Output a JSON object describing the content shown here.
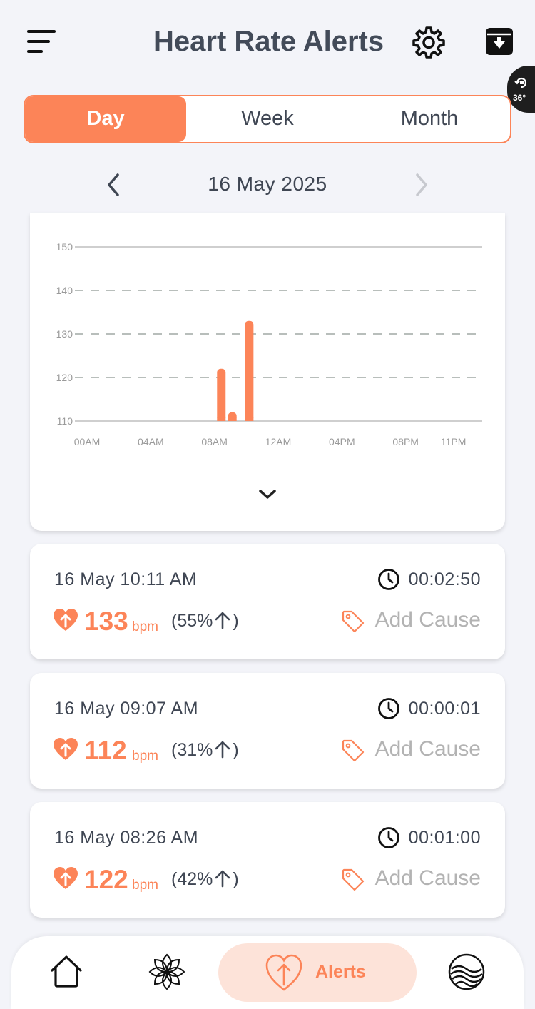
{
  "header": {
    "title": "Heart Rate Alerts",
    "rotate_badge": "36°"
  },
  "tabs": [
    {
      "label": "Day",
      "active": true
    },
    {
      "label": "Week",
      "active": false
    },
    {
      "label": "Month",
      "active": false
    }
  ],
  "date_nav": {
    "date": "16 May 2025"
  },
  "chart_data": {
    "type": "bar",
    "ylim": [
      110,
      150
    ],
    "yticks": [
      150,
      140,
      130,
      120,
      110
    ],
    "xticks": [
      "00AM",
      "04AM",
      "08AM",
      "12AM",
      "04PM",
      "08PM",
      "11PM"
    ],
    "x_hours": [
      0,
      4,
      8,
      12,
      16,
      20,
      23
    ],
    "bars": [
      {
        "hour": 8.43,
        "value": 122
      },
      {
        "hour": 9.12,
        "value": 112
      },
      {
        "hour": 10.18,
        "value": 133
      }
    ],
    "grid": "dashed",
    "color": "#fc8458"
  },
  "alerts": [
    {
      "time": "16 May 10:11 AM",
      "duration": "00:02:50",
      "bpm": "133",
      "unit": "bpm",
      "pct_open": "(55%",
      "pct_close": ")",
      "cause": "Add Cause"
    },
    {
      "time": "16 May 09:07 AM",
      "duration": "00:00:01",
      "bpm": "112",
      "unit": "bpm",
      "pct_open": "(31%",
      "pct_close": ")",
      "cause": "Add Cause"
    },
    {
      "time": "16 May 08:26 AM",
      "duration": "00:01:00",
      "bpm": "122",
      "unit": "bpm",
      "pct_open": "(42%",
      "pct_close": ")",
      "cause": "Add Cause"
    }
  ],
  "bottom_nav": {
    "alerts_label": "Alerts"
  },
  "colors": {
    "accent": "#fc8458",
    "accent_light": "#fde3d9",
    "text": "#3f4653",
    "muted": "#b3b3b3"
  },
  "icons": {
    "menu": "menu-icon",
    "settings": "gear-icon",
    "download": "download-box-icon",
    "clock": "clock-icon",
    "heart": "heart-arrow-icon",
    "tag": "tag-icon",
    "home": "home-icon",
    "explore": "flower-icon",
    "profile": "waves-avatar-icon"
  }
}
